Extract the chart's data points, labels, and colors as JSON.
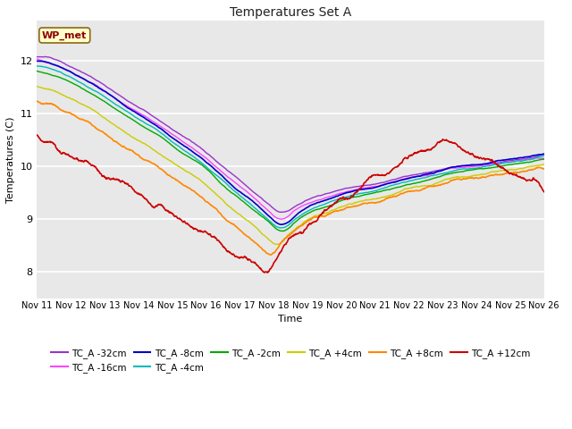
{
  "title": "Temperatures Set A",
  "xlabel": "Time",
  "ylabel": "Temperatures (C)",
  "ylim": [
    7.5,
    12.75
  ],
  "fig_bg": "#ffffff",
  "plot_bg": "#e8e8e8",
  "grid_color": "#ffffff",
  "annotation_text": "WP_met",
  "annotation_bg": "#ffffcc",
  "annotation_border": "#8B6914",
  "annotation_text_color": "#8B0000",
  "series": [
    {
      "label": "TC_A -32cm",
      "color": "#9933cc",
      "lw": 1.0
    },
    {
      "label": "TC_A -16cm",
      "color": "#ff44ff",
      "lw": 1.0
    },
    {
      "label": "TC_A -8cm",
      "color": "#0000cc",
      "lw": 1.2
    },
    {
      "label": "TC_A -4cm",
      "color": "#00bbbb",
      "lw": 1.0
    },
    {
      "label": "TC_A -2cm",
      "color": "#00aa00",
      "lw": 1.0
    },
    {
      "label": "TC_A +4cm",
      "color": "#cccc00",
      "lw": 1.0
    },
    {
      "label": "TC_A +8cm",
      "color": "#ff8800",
      "lw": 1.2
    },
    {
      "label": "TC_A +12cm",
      "color": "#cc0000",
      "lw": 1.2
    }
  ],
  "xtick_labels": [
    "Nov 11",
    "Nov 12",
    "Nov 13",
    "Nov 14",
    "Nov 15",
    "Nov 16",
    "Nov 17",
    "Nov 18",
    "Nov 19",
    "Nov 20",
    "Nov 21",
    "Nov 22",
    "Nov 23",
    "Nov 24",
    "Nov 25",
    "Nov 26"
  ],
  "n_points": 1500
}
